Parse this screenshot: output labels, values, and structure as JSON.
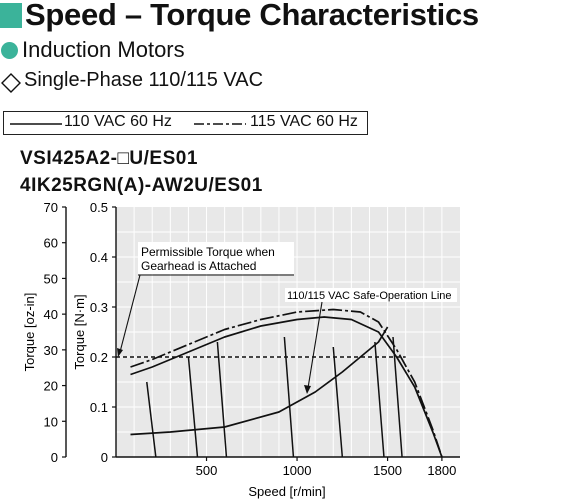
{
  "header": {
    "title": "Speed – Torque Characteristics",
    "subtitle": "Induction Motors",
    "voltage_line": "Single-Phase 110/115 VAC",
    "accent_color": "#3bb39a"
  },
  "legend": {
    "items": [
      {
        "label": "110 VAC 60 Hz",
        "style": "solid"
      },
      {
        "label": "115 VAC 60 Hz",
        "style": "dash-dot"
      }
    ]
  },
  "models": [
    "VSI425A2-□U/ES01",
    "4IK25RGN(A)-AW2U/ES01"
  ],
  "chart_data": {
    "type": "line",
    "xlabel": "Speed [r/min]",
    "ylabel_left": "Torque [oz-in]",
    "ylabel_right": "Torque [N·m]",
    "xlim": [
      0,
      1900
    ],
    "ylim": [
      0,
      0.5
    ],
    "y2lim": [
      0,
      70
    ],
    "x_ticks": [
      "500",
      "1000",
      "1500",
      "1800"
    ],
    "x_tick_values": [
      500,
      1000,
      1500,
      1800
    ],
    "y_ticks": [
      "0",
      "0.1",
      "0.2",
      "0.3",
      "0.4",
      "0.5"
    ],
    "y_tick_values": [
      0,
      0.1,
      0.2,
      0.3,
      0.4,
      0.5
    ],
    "y2_ticks": [
      "0",
      "10",
      "20",
      "30",
      "40",
      "50",
      "60",
      "70"
    ],
    "y2_tick_values": [
      0,
      10,
      20,
      30,
      40,
      50,
      60,
      70
    ],
    "grid": true,
    "series": [
      {
        "name": "110 VAC 60 Hz",
        "style": "solid",
        "x": [
          80,
          200,
          400,
          600,
          800,
          1000,
          1150,
          1300,
          1450,
          1550,
          1650,
          1750,
          1800
        ],
        "y": [
          0.165,
          0.18,
          0.21,
          0.24,
          0.262,
          0.275,
          0.28,
          0.275,
          0.25,
          0.2,
          0.14,
          0.05,
          0
        ]
      },
      {
        "name": "115 VAC 60 Hz",
        "style": "dash-dot",
        "x": [
          80,
          200,
          400,
          600,
          800,
          1000,
          1200,
          1350,
          1450,
          1550,
          1650,
          1750,
          1800
        ],
        "y": [
          0.18,
          0.195,
          0.225,
          0.255,
          0.275,
          0.29,
          0.295,
          0.29,
          0.27,
          0.215,
          0.15,
          0.055,
          0
        ]
      },
      {
        "name": "110/115 VAC Safe-Operation Line",
        "style": "solid",
        "x": [
          80,
          300,
          600,
          900,
          1100,
          1250,
          1350,
          1450,
          1500
        ],
        "y": [
          0.045,
          0.05,
          0.06,
          0.09,
          0.13,
          0.17,
          0.2,
          0.23,
          0.26
        ]
      }
    ],
    "reference_lines": [
      {
        "label": "Permissible Torque when Gearhead is Attached",
        "y": 0.2,
        "x_range": [
          0,
          1600
        ],
        "style": "dashed"
      }
    ],
    "load_lines": [
      {
        "x": [
          170,
          220
        ],
        "y": [
          0.15,
          0
        ]
      },
      {
        "x": [
          400,
          450
        ],
        "y": [
          0.2,
          0
        ]
      },
      {
        "x": [
          560,
          610
        ],
        "y": [
          0.23,
          0
        ]
      },
      {
        "x": [
          930,
          980
        ],
        "y": [
          0.24,
          0
        ]
      },
      {
        "x": [
          1200,
          1250
        ],
        "y": [
          0.22,
          0
        ]
      },
      {
        "x": [
          1430,
          1480
        ],
        "y": [
          0.23,
          0
        ]
      },
      {
        "x": [
          1530,
          1580
        ],
        "y": [
          0.24,
          0
        ]
      }
    ],
    "annotations": [
      {
        "text_lines": [
          "Permissible Torque when",
          "Gearhead is Attached"
        ]
      },
      {
        "text_lines": [
          "110/115 VAC Safe-Operation Line"
        ]
      }
    ]
  }
}
